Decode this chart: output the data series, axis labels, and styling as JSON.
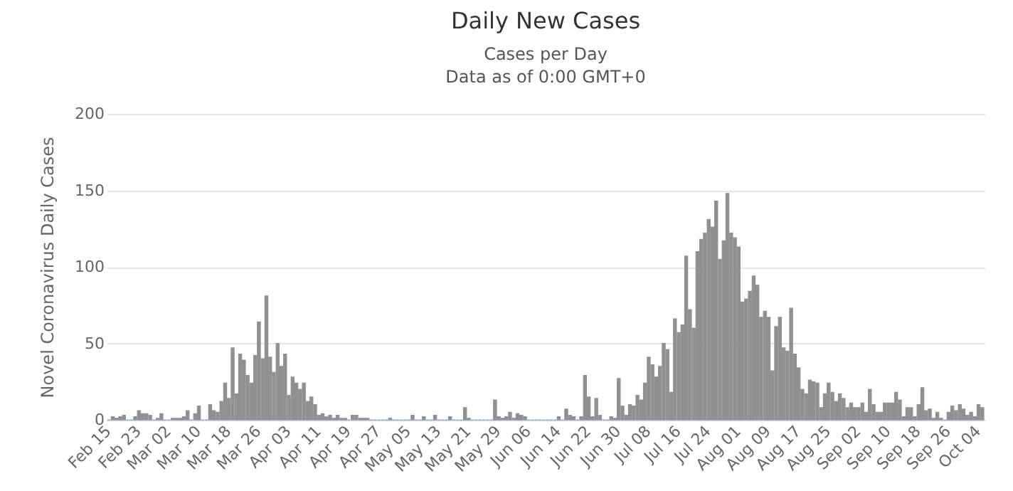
{
  "chart_data": {
    "type": "bar",
    "title": "Daily New Cases",
    "subtitle": "Cases per Day\nData as of 0:00 GMT+0",
    "ylabel": "Novel Coronavirus Daily Cases",
    "categories": [
      "Feb 15",
      null,
      null,
      null,
      null,
      null,
      null,
      null,
      "Feb 23",
      null,
      null,
      null,
      null,
      null,
      null,
      null,
      "Mar 02",
      null,
      null,
      null,
      null,
      null,
      null,
      null,
      "Mar 10",
      null,
      null,
      null,
      null,
      null,
      null,
      null,
      "Mar 18",
      null,
      null,
      null,
      null,
      null,
      null,
      null,
      "Mar 26",
      null,
      null,
      null,
      null,
      null,
      null,
      null,
      "Apr 03",
      null,
      null,
      null,
      null,
      null,
      null,
      null,
      "Apr 11",
      null,
      null,
      null,
      null,
      null,
      null,
      null,
      "Apr 19",
      null,
      null,
      null,
      null,
      null,
      null,
      null,
      "Apr 27",
      null,
      null,
      null,
      null,
      null,
      null,
      null,
      "May 05",
      null,
      null,
      null,
      null,
      null,
      null,
      null,
      "May 13",
      null,
      null,
      null,
      null,
      null,
      null,
      null,
      "May 21",
      null,
      null,
      null,
      null,
      null,
      null,
      null,
      "May 29",
      null,
      null,
      null,
      null,
      null,
      null,
      null,
      "Jun 06",
      null,
      null,
      null,
      null,
      null,
      null,
      null,
      "Jun 14",
      null,
      null,
      null,
      null,
      null,
      null,
      null,
      "Jun 22",
      null,
      null,
      null,
      null,
      null,
      null,
      null,
      "Jun 30",
      null,
      null,
      null,
      null,
      null,
      null,
      null,
      "Jul 08",
      null,
      null,
      null,
      null,
      null,
      null,
      null,
      "Jul 16",
      null,
      null,
      null,
      null,
      null,
      null,
      null,
      "Jul 24",
      null,
      null,
      null,
      null,
      null,
      null,
      null,
      "Aug 01",
      null,
      null,
      null,
      null,
      null,
      null,
      null,
      "Aug 09",
      null,
      null,
      null,
      null,
      null,
      null,
      null,
      "Aug 17",
      null,
      null,
      null,
      null,
      null,
      null,
      null,
      "Aug 25",
      null,
      null,
      null,
      null,
      null,
      null,
      null,
      "Sep 02",
      null,
      null,
      null,
      null,
      null,
      null,
      null,
      "Sep 10",
      null,
      null,
      null,
      null,
      null,
      null,
      null,
      "Sep 18",
      null,
      null,
      null,
      null,
      null,
      null,
      null,
      "Sep 26",
      null,
      null,
      null,
      null,
      null,
      null,
      null,
      "Oct 04",
      null
    ],
    "values": [
      0,
      2,
      1,
      2,
      3,
      0,
      0,
      2,
      6,
      4,
      4,
      3,
      0,
      1,
      4,
      0,
      0,
      1,
      1,
      1,
      2,
      6,
      0,
      4,
      9,
      0,
      0,
      10,
      6,
      5,
      12,
      24,
      14,
      47,
      17,
      43,
      39,
      29,
      24,
      42,
      64,
      40,
      81,
      41,
      31,
      50,
      35,
      43,
      16,
      28,
      24,
      20,
      24,
      12,
      15,
      10,
      3,
      4,
      2,
      3,
      1,
      3,
      1,
      1,
      0,
      3,
      3,
      1,
      1,
      1,
      0,
      0,
      0,
      0,
      0,
      1,
      0,
      0,
      0,
      0,
      0,
      3,
      0,
      0,
      2,
      0,
      0,
      3,
      0,
      0,
      0,
      2,
      0,
      0,
      0,
      8,
      1,
      0,
      0,
      0,
      0,
      0,
      0,
      13,
      2,
      1,
      2,
      5,
      1,
      4,
      3,
      2,
      0,
      0,
      0,
      0,
      0,
      0,
      0,
      0,
      2,
      0,
      7,
      3,
      2,
      0,
      2,
      29,
      15,
      2,
      14,
      3,
      0,
      0,
      2,
      1,
      27,
      9,
      3,
      10,
      9,
      16,
      13,
      24,
      41,
      36,
      28,
      35,
      50,
      46,
      18,
      66,
      57,
      62,
      107,
      72,
      60,
      110,
      118,
      122,
      131,
      126,
      143,
      105,
      117,
      148,
      122,
      119,
      113,
      77,
      79,
      84,
      94,
      88,
      67,
      71,
      67,
      32,
      61,
      67,
      47,
      45,
      73,
      43,
      34,
      20,
      17,
      26,
      25,
      24,
      8,
      17,
      24,
      18,
      12,
      17,
      14,
      8,
      11,
      8,
      8,
      11,
      5,
      20,
      10,
      5,
      5,
      11,
      11,
      11,
      18,
      13,
      2,
      8,
      8,
      2,
      10,
      21,
      6,
      7,
      1,
      5,
      1,
      0,
      5,
      9,
      6,
      10,
      7,
      3,
      5,
      2,
      10,
      8
    ],
    "color": "#909090",
    "ylim": [
      0,
      200
    ],
    "yticks": [
      0,
      50,
      100,
      150,
      200
    ],
    "grid": "y"
  }
}
